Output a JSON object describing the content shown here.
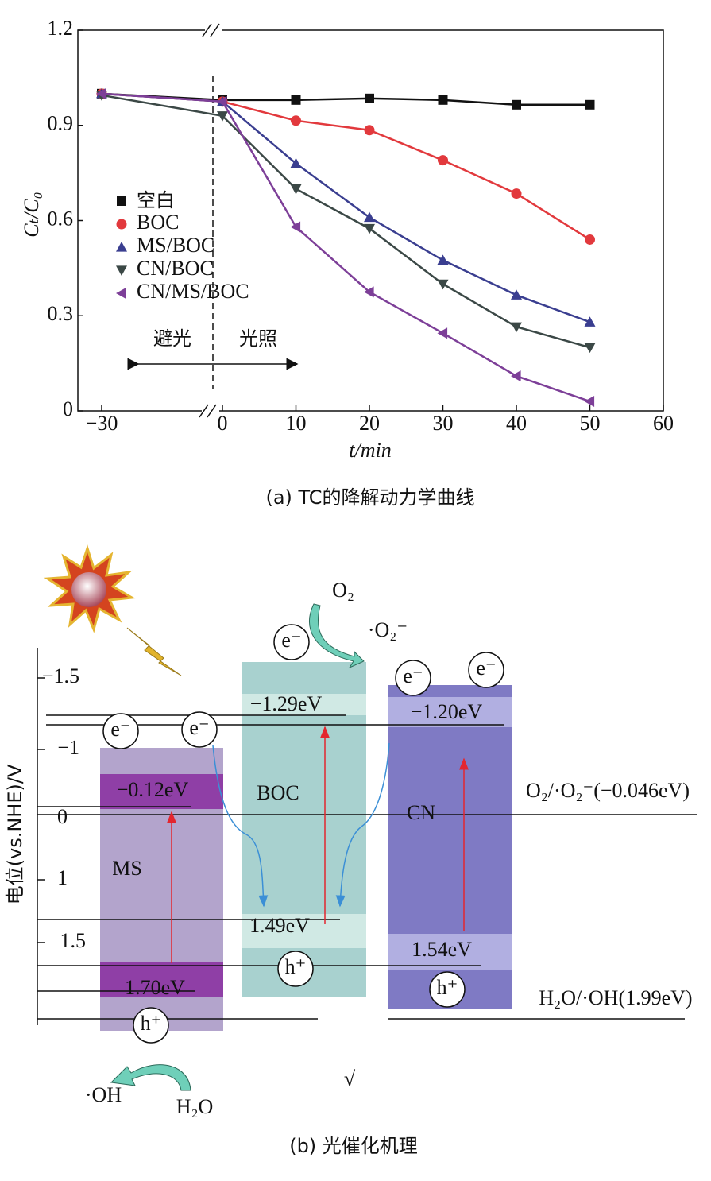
{
  "chart_data": {
    "type": "line",
    "xlabel": "t/min",
    "ylabel": "Cₜ/C₀",
    "x": [
      -30,
      0,
      10,
      20,
      30,
      40,
      50
    ],
    "series": [
      {
        "name": "空白",
        "color": "#111111",
        "marker": "square",
        "values": [
          1.0,
          0.98,
          0.98,
          0.985,
          0.98,
          0.965,
          0.965
        ]
      },
      {
        "name": "BOC",
        "color": "#e2393d",
        "marker": "circle",
        "values": [
          1.0,
          0.975,
          0.915,
          0.885,
          0.79,
          0.685,
          0.54
        ]
      },
      {
        "name": "MS/BOC",
        "color": "#3a3e90",
        "marker": "triangle-up",
        "values": [
          1.0,
          0.975,
          0.78,
          0.61,
          0.475,
          0.365,
          0.28
        ]
      },
      {
        "name": "CN/BOC",
        "color": "#3b4846",
        "marker": "triangle-down",
        "values": [
          0.995,
          0.93,
          0.7,
          0.575,
          0.4,
          0.265,
          0.2
        ]
      },
      {
        "name": "CN/MS/BOC",
        "color": "#7d3f98",
        "marker": "triangle-left",
        "values": [
          1.0,
          0.975,
          0.58,
          0.375,
          0.245,
          0.11,
          0.03
        ]
      }
    ],
    "xlim": [
      -30,
      60
    ],
    "xticks": [
      {
        "value": -30,
        "label": "−30"
      },
      0,
      10,
      20,
      30,
      40,
      50,
      60
    ],
    "ylim": [
      0,
      1.2
    ],
    "yticks": [
      0,
      0.3,
      0.6,
      0.9,
      1.2
    ],
    "annotations": [
      "避光",
      "光照"
    ],
    "caption": "(a) TC的降解动力学曲线"
  },
  "diagram": {
    "axis_label": "电位(vs.NHE)/V",
    "axis_ticks": [
      "−1.5",
      "−1",
      "0",
      "1",
      "1.5"
    ],
    "bands": [
      {
        "name": "MS",
        "cb": "−0.12eV",
        "vb": "1.70eV"
      },
      {
        "name": "BOC",
        "cb": "−1.29eV",
        "vb": "1.49eV"
      },
      {
        "name": "CN",
        "cb": "−1.20eV",
        "vb": "1.54eV"
      }
    ],
    "electron": "e⁻",
    "hole": "h⁺",
    "species": [
      "O₂",
      "·O₂⁻",
      "O₂/·O₂⁻(−0.046eV)",
      "H₂O/·OH(1.99eV)",
      "·OH",
      "H₂O",
      "√"
    ],
    "caption": "(b) 光催化机理"
  }
}
